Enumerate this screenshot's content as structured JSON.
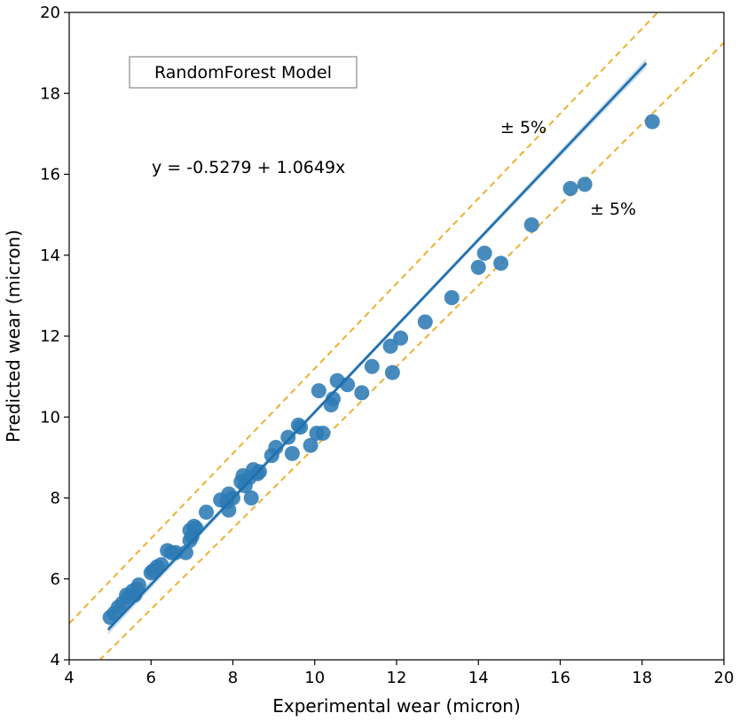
{
  "chart_data": {
    "type": "scatter",
    "xlabel": "Experimental wear (micron)",
    "ylabel": "Predicted wear (micron)",
    "xlim": [
      4,
      20
    ],
    "ylim": [
      4,
      20
    ],
    "xticks": [
      "4",
      "6",
      "8",
      "10",
      "12",
      "14",
      "16",
      "18",
      "20"
    ],
    "yticks": [
      "4",
      "6",
      "8",
      "10",
      "12",
      "14",
      "16",
      "18",
      "20"
    ],
    "legend_box": "RandomForest Model",
    "equation": "y = -0.5279 + 1.0649x",
    "band_upper_label": "± 5%",
    "band_lower_label": "± 5%",
    "grid": false,
    "colors": {
      "points": "#2e7bb5",
      "fit_line": "#1f6fae",
      "ci_band": "#a9c6dd",
      "band_lines": "#f0b030"
    },
    "fit": {
      "intercept": -0.5279,
      "slope": 1.0649,
      "x_range": [
        4.95,
        18.1
      ]
    },
    "band_upper": {
      "intercept": 0.7,
      "slope": 1.05,
      "x_range": [
        4,
        20
      ]
    },
    "band_lower": {
      "intercept": -0.75,
      "slope": 1.0,
      "x_range": [
        4,
        20
      ]
    },
    "points": [
      [
        5.0,
        5.05
      ],
      [
        5.1,
        5.15
      ],
      [
        5.2,
        5.3
      ],
      [
        5.3,
        5.4
      ],
      [
        5.4,
        5.6
      ],
      [
        5.45,
        5.55
      ],
      [
        5.55,
        5.7
      ],
      [
        5.6,
        5.6
      ],
      [
        5.65,
        5.75
      ],
      [
        5.7,
        5.85
      ],
      [
        6.0,
        6.15
      ],
      [
        6.05,
        6.2
      ],
      [
        6.15,
        6.3
      ],
      [
        6.25,
        6.35
      ],
      [
        6.4,
        6.7
      ],
      [
        6.5,
        6.65
      ],
      [
        6.6,
        6.65
      ],
      [
        6.85,
        6.65
      ],
      [
        6.95,
        6.95
      ],
      [
        6.95,
        7.2
      ],
      [
        7.0,
        7.05
      ],
      [
        7.05,
        7.3
      ],
      [
        7.1,
        7.25
      ],
      [
        7.35,
        7.65
      ],
      [
        7.7,
        7.95
      ],
      [
        7.85,
        7.9
      ],
      [
        7.9,
        8.1
      ],
      [
        7.9,
        7.7
      ],
      [
        8.0,
        8.0
      ],
      [
        8.2,
        8.4
      ],
      [
        8.25,
        8.55
      ],
      [
        8.3,
        8.3
      ],
      [
        8.4,
        8.5
      ],
      [
        8.45,
        8.0
      ],
      [
        8.5,
        8.7
      ],
      [
        8.6,
        8.6
      ],
      [
        8.65,
        8.65
      ],
      [
        8.95,
        9.05
      ],
      [
        9.05,
        9.25
      ],
      [
        9.35,
        9.5
      ],
      [
        9.45,
        9.1
      ],
      [
        9.6,
        9.8
      ],
      [
        9.65,
        9.75
      ],
      [
        9.9,
        9.3
      ],
      [
        10.05,
        9.6
      ],
      [
        10.1,
        10.65
      ],
      [
        10.2,
        9.6
      ],
      [
        10.4,
        10.3
      ],
      [
        10.45,
        10.45
      ],
      [
        10.55,
        10.9
      ],
      [
        10.8,
        10.8
      ],
      [
        11.15,
        10.6
      ],
      [
        11.4,
        11.25
      ],
      [
        11.85,
        11.75
      ],
      [
        11.9,
        11.1
      ],
      [
        12.1,
        11.95
      ],
      [
        12.7,
        12.35
      ],
      [
        13.35,
        12.95
      ],
      [
        14.0,
        13.7
      ],
      [
        14.15,
        14.05
      ],
      [
        14.55,
        13.8
      ],
      [
        15.3,
        14.75
      ],
      [
        16.25,
        15.65
      ],
      [
        16.6,
        15.75
      ],
      [
        18.25,
        17.3
      ]
    ]
  }
}
